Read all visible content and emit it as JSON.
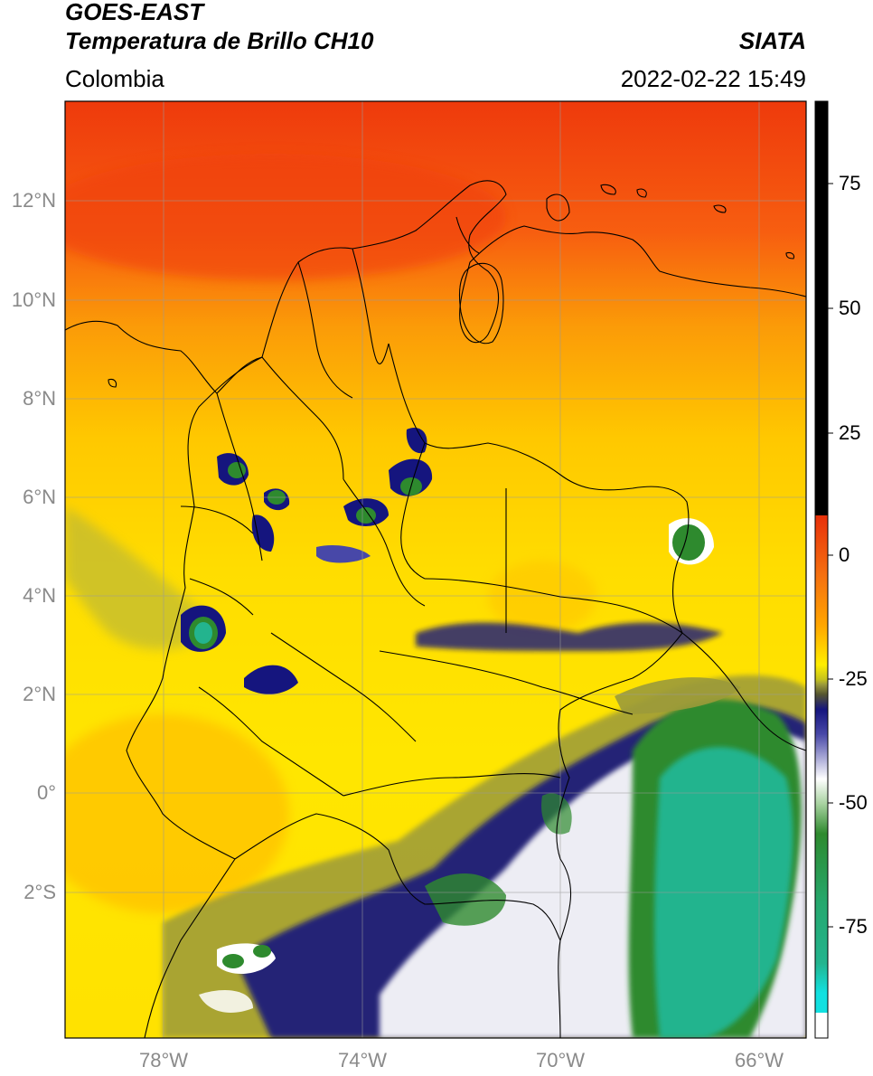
{
  "header": {
    "satellite": "GOES-EAST",
    "product": "Temperatura de Brillo CH10",
    "region": "Colombia",
    "provider": "SIATA",
    "datetime": "2022-02-22 15:49"
  },
  "map": {
    "lat_labels": [
      "12°N",
      "10°N",
      "8°N",
      "6°N",
      "4°N",
      "2°N",
      "0°",
      "2°S"
    ],
    "lon_labels": [
      "78°W",
      "74°W",
      "70°W",
      "66°W"
    ]
  },
  "colorbar": {
    "ticks": [
      "75",
      "50",
      "25",
      "0",
      "-25",
      "-50",
      "-75"
    ],
    "colors": {
      "high": "#000000",
      "red": "#e8300a",
      "orange": "#ffa500",
      "yellow": "#ffee00",
      "olive": "#9b9a3a",
      "navy": "#15157e",
      "white": "#ffffff",
      "green": "#2e8a2e",
      "teal": "#23b48e",
      "cyan": "#12e0e0"
    }
  }
}
